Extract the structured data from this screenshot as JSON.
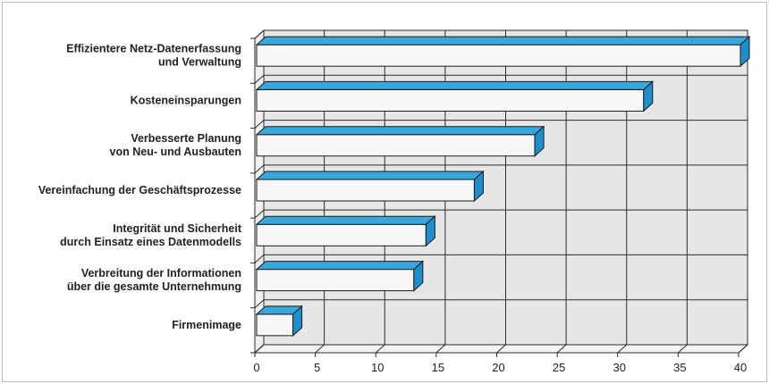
{
  "chart_data": {
    "type": "bar",
    "orientation": "horizontal",
    "title": "",
    "xlabel": "",
    "ylabel": "",
    "categories": [
      [
        "Effizientere Netz-Datenerfassung",
        "und Verwaltung"
      ],
      [
        "Kosteneinsparungen"
      ],
      [
        "Verbesserte Planung",
        "von Neu- und Ausbauten"
      ],
      [
        "Vereinfachung der Geschäftsprozesse"
      ],
      [
        "Integrität und Sicherheit",
        "durch Einsatz eines Datenmodells"
      ],
      [
        "Verbreitung der Informationen",
        "über die gesamte Unternehmung"
      ],
      [
        "Firmenimage"
      ]
    ],
    "values": [
      40,
      32,
      23,
      18,
      14,
      13,
      3
    ],
    "xlim": [
      0,
      40
    ],
    "xticks": [
      "0",
      "5",
      "10",
      "15",
      "20",
      "25",
      "30",
      "35",
      "40"
    ],
    "grid": true,
    "legend": "none"
  },
  "colors": {
    "bar_face": "#f7f7f9",
    "bar_top": "#38a8dc",
    "bar_side": "#1f8fcc",
    "bar_outline": "#1a1a1a",
    "plot_bg": "#e6e6e6",
    "grid": "#2a2a2a"
  }
}
